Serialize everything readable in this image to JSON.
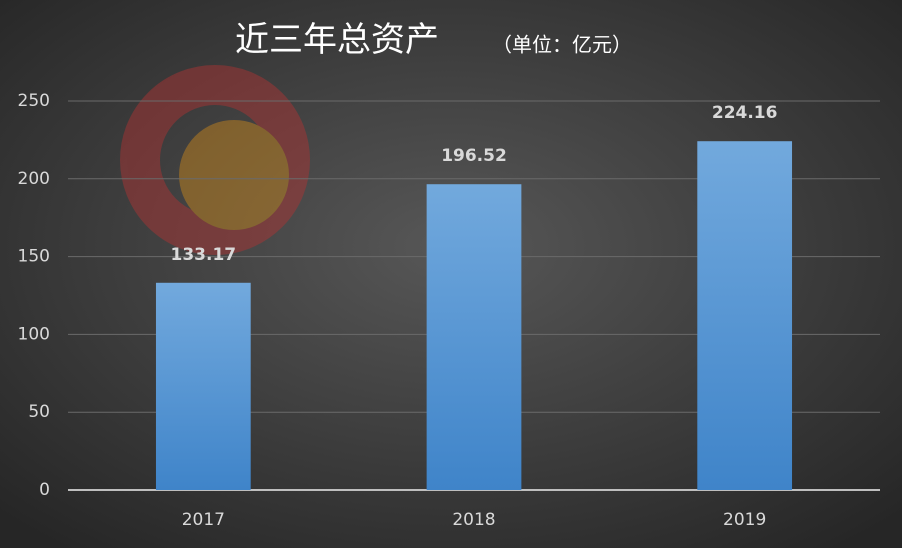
{
  "chart_data": {
    "type": "bar",
    "title": "近三年总资产",
    "subtitle": "（单位：亿元）",
    "categories": [
      "2017",
      "2018",
      "2019"
    ],
    "values": [
      133.17,
      196.52,
      224.16
    ],
    "color": "#5b9bd5",
    "ylim": [
      0,
      250
    ],
    "yticks": [
      0,
      50,
      100,
      150,
      200,
      250
    ],
    "grid": true
  }
}
